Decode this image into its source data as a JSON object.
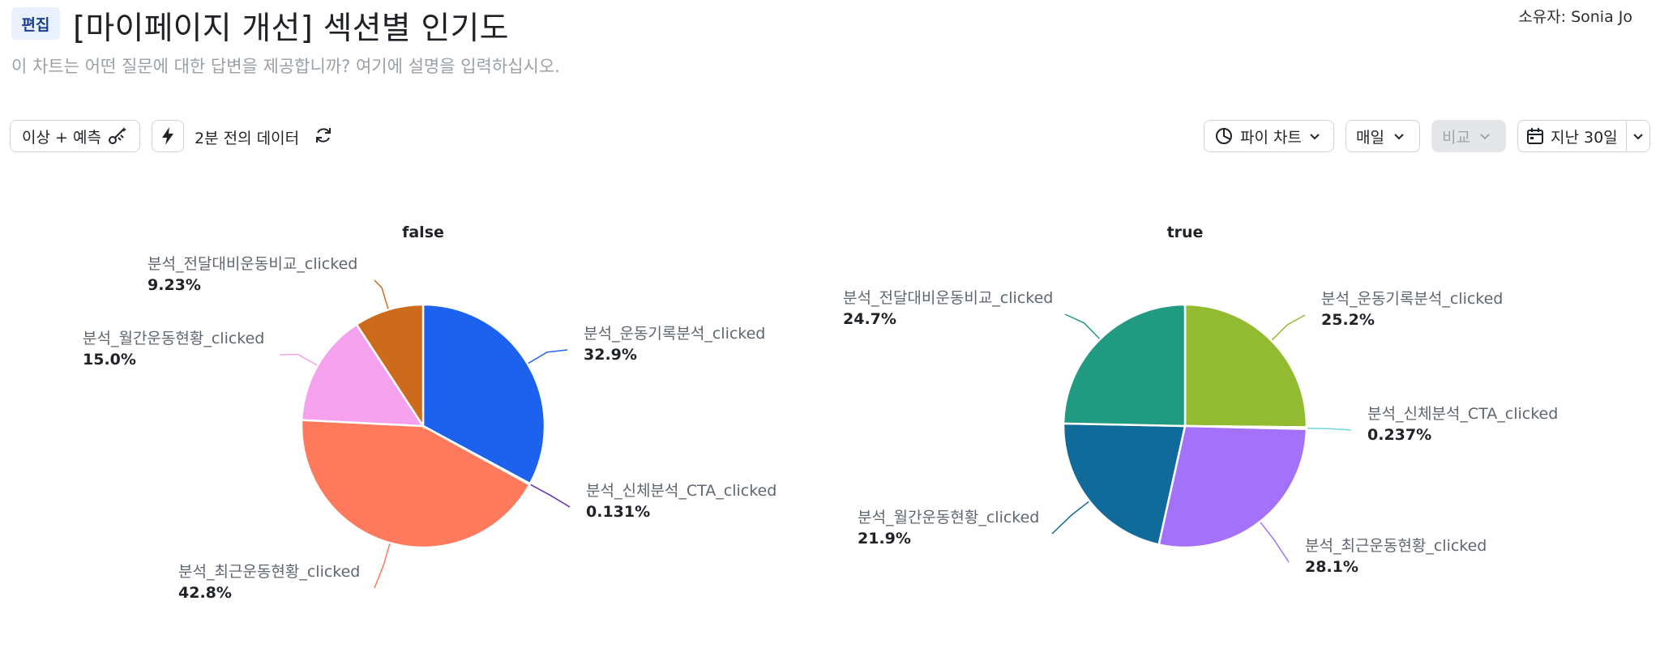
{
  "header": {
    "edit_label": "편집",
    "title": "[마이페이지 개선] 섹션별 인기도",
    "owner": "소유자: Sonia Jo",
    "description": "이 차트는 어떤 질문에 대한 답변을 제공합니까? 여기에 설명을 입력하십시오."
  },
  "toolbar": {
    "anomaly_label": "이상 + 예측",
    "data_age": "2분 전의 데이터",
    "chart_type_label": "파이 차트",
    "interval_label": "매일",
    "compare_label": "비교",
    "range_label": "지난 30일"
  },
  "icons": {
    "anomaly": "magic-wand-icon",
    "bolt": "lightning-bolt-icon",
    "refresh": "refresh-icon",
    "chart_type": "pie-chart-icon",
    "calendar": "calendar-icon",
    "chevron": "chevron-down-icon"
  },
  "chart_data": [
    {
      "type": "pie",
      "title": "false",
      "slices": [
        {
          "label": "분석_운동기록분석_clicked",
          "value": 32.9,
          "display": "32.9%",
          "color": "#1c62ee"
        },
        {
          "label": "분석_신체분석_CTA_clicked",
          "value": 0.131,
          "display": "0.131%",
          "color": "#6a2fb0"
        },
        {
          "label": "분석_최근운동현황_clicked",
          "value": 42.8,
          "display": "42.8%",
          "color": "#ff7a5c"
        },
        {
          "label": "분석_월간운동현황_clicked",
          "value": 15.0,
          "display": "15.0%",
          "color": "#f6a1ee"
        },
        {
          "label": "분석_전달대비운동비교_clicked",
          "value": 9.23,
          "display": "9.23%",
          "color": "#cd6b1c"
        }
      ]
    },
    {
      "type": "pie",
      "title": "true",
      "slices": [
        {
          "label": "분석_운동기록분석_clicked",
          "value": 25.2,
          "display": "25.2%",
          "color": "#93bb32"
        },
        {
          "label": "분석_신체분석_CTA_clicked",
          "value": 0.237,
          "display": "0.237%",
          "color": "#74d3dd"
        },
        {
          "label": "분석_최근운동현황_clicked",
          "value": 28.1,
          "display": "28.1%",
          "color": "#a371fa"
        },
        {
          "label": "분석_월간운동현황_clicked",
          "value": 21.9,
          "display": "21.9%",
          "color": "#106a9a"
        },
        {
          "label": "분석_전달대비운동비교_clicked",
          "value": 24.7,
          "display": "24.7%",
          "color": "#219a82"
        }
      ]
    }
  ]
}
